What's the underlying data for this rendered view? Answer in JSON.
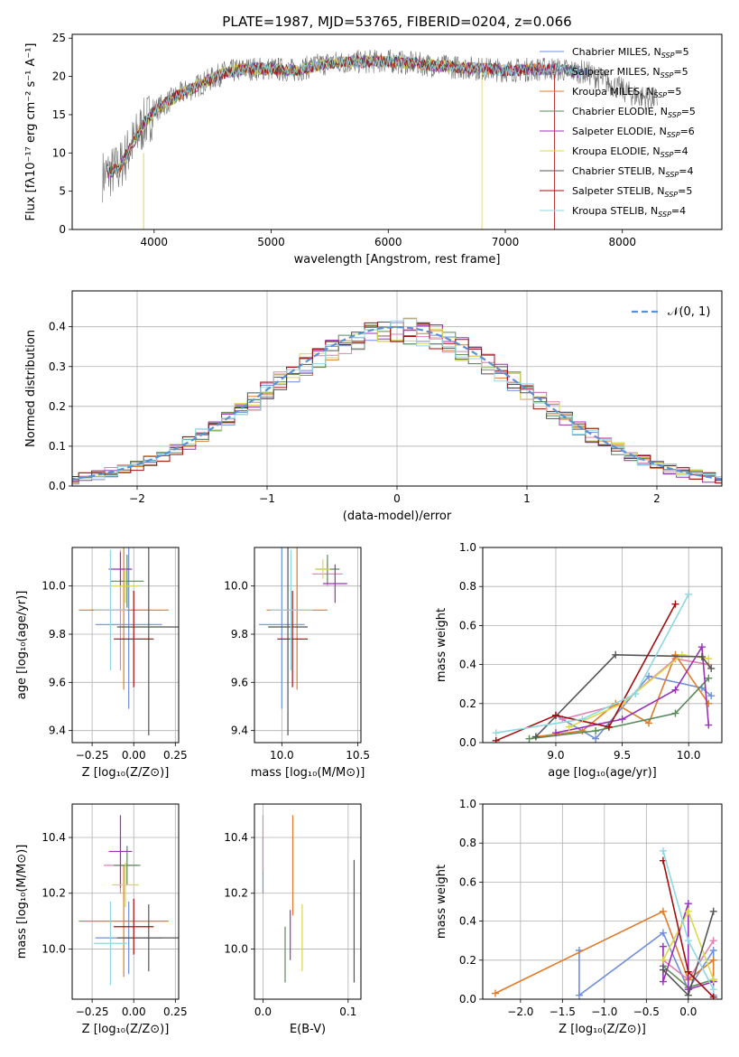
{
  "title": "PLATE=1987, MJD=53765, FIBERID=0204, z=0.066",
  "models": [
    {
      "name": "Chabrier MILES",
      "n": "5",
      "color": "#6f8fdc"
    },
    {
      "name": "Salpeter MILES",
      "n": "5",
      "color": "#a2a2a2"
    },
    {
      "name": "Kroupa MILES",
      "n": "5",
      "color": "#e07b2a"
    },
    {
      "name": "Chabrier ELODIE",
      "n": "5",
      "color": "#5a8a5a"
    },
    {
      "name": "Salpeter ELODIE",
      "n": "6",
      "color": "#9b30b8"
    },
    {
      "name": "Kroupa ELODIE",
      "n": "4",
      "color": "#d9d94a"
    },
    {
      "name": "Chabrier STELIB",
      "n": "4",
      "color": "#555555"
    },
    {
      "name": "Salpeter STELIB",
      "n": "5",
      "color": "#a30e0e"
    },
    {
      "name": "Kroupa STELIB",
      "n": "4",
      "color": "#8ed8e0"
    }
  ],
  "chart_data": [
    {
      "id": "spectrum",
      "type": "line",
      "title": "PLATE=1987, MJD=53765, FIBERID=0204, z=0.066",
      "xlabel": "wavelength [Angstrom, rest frame]",
      "ylabel": "Flux [fλ10⁻¹⁷ erg cm⁻² s⁻¹ A⁻¹]",
      "xlim": [
        3300,
        8850
      ],
      "ylim": [
        0,
        25.5
      ],
      "xticks": [
        "4000",
        "5000",
        "6000",
        "7000",
        "8000"
      ],
      "yticks": [
        "0",
        "5",
        "10",
        "15",
        "20",
        "25"
      ],
      "continuum": [
        [
          3560,
          7.0
        ],
        [
          3700,
          8.0
        ],
        [
          3900,
          13.5
        ],
        [
          4000,
          15.5
        ],
        [
          4200,
          17.5
        ],
        [
          4400,
          19.0
        ],
        [
          4600,
          20.5
        ],
        [
          4800,
          21.0
        ],
        [
          5000,
          21.0
        ],
        [
          5200,
          20.8
        ],
        [
          5500,
          21.8
        ],
        [
          6000,
          22.0
        ],
        [
          6500,
          21.3
        ],
        [
          7000,
          20.8
        ],
        [
          7400,
          21.0
        ],
        [
          7700,
          20.5
        ],
        [
          7900,
          19.0
        ],
        [
          8100,
          17.5
        ],
        [
          8300,
          17.0
        ]
      ],
      "legend_position": "upper right"
    },
    {
      "id": "residuals",
      "type": "histogram",
      "xlabel": "(data-model)/error",
      "ylabel": "Normed distribution",
      "xlim": [
        -2.5,
        2.5
      ],
      "ylim": [
        0,
        0.49
      ],
      "xticks": [
        "−2",
        "−1",
        "0",
        "1",
        "2"
      ],
      "yticks": [
        "0.0",
        "0.1",
        "0.2",
        "0.3",
        "0.4"
      ],
      "reference": {
        "label": "𝒩(0, 1)",
        "mean": 0,
        "sigma": 1
      },
      "grid": true,
      "legend_position": "upper right"
    },
    {
      "id": "age-vs-Z",
      "type": "errorbar",
      "xlabel": "Z [log₁₀(Z/Z⊙)]",
      "ylabel": "age  [log₁₀(age/yr)]",
      "xlim": [
        -0.37,
        0.27
      ],
      "ylim": [
        9.35,
        10.16
      ],
      "xticks": [
        "−0.25",
        "0.00",
        "0.25"
      ],
      "yticks": [
        "9.4",
        "9.6",
        "9.8",
        "10.0"
      ],
      "points": [
        {
          "x": -0.03,
          "xerr": 0.2,
          "y": 9.84,
          "yerr": 0.35
        },
        {
          "x": -0.08,
          "xerr": 0.18,
          "y": 9.9,
          "yerr": 0.25
        },
        {
          "x": -0.06,
          "xerr": 0.27,
          "y": 9.9,
          "yerr": 0.33
        },
        {
          "x": -0.04,
          "xerr": 0.1,
          "y": 10.02,
          "yerr": 0.11
        },
        {
          "x": -0.08,
          "xerr": 0.07,
          "y": 10.07,
          "yerr": 0.07
        },
        {
          "x": -0.05,
          "xerr": 0.08,
          "y": 10.0,
          "yerr": 0.07
        },
        {
          "x": 0.09,
          "xerr": 0.19,
          "y": 9.83,
          "yerr": 0.45
        },
        {
          "x": 0.0,
          "xerr": 0.12,
          "y": 9.78,
          "yerr": 0.2
        },
        {
          "x": -0.14,
          "xerr": 0.1,
          "y": 9.9,
          "yerr": 0.25
        }
      ]
    },
    {
      "id": "age-vs-mass",
      "type": "errorbar",
      "xlabel": "mass [log₁₀(M/M⊙)]",
      "ylabel": "",
      "xlim": [
        9.82,
        10.52
      ],
      "ylim": [
        9.35,
        10.16
      ],
      "xticks": [
        "10.0",
        "10.5"
      ],
      "yticks": [
        "9.4",
        "9.6",
        "9.8",
        "10.0"
      ],
      "points": [
        {
          "x": 10.0,
          "xerr": 0.15,
          "y": 9.84,
          "yerr": 0.35
        },
        {
          "x": 10.3,
          "xerr": 0.1,
          "y": 10.05,
          "yerr": 0.05
        },
        {
          "x": 10.1,
          "xerr": 0.2,
          "y": 9.9,
          "yerr": 0.33
        },
        {
          "x": 10.3,
          "xerr": 0.08,
          "y": 10.07,
          "yerr": 0.06
        },
        {
          "x": 10.35,
          "xerr": 0.08,
          "y": 10.01,
          "yerr": 0.08
        },
        {
          "x": 10.27,
          "xerr": 0.05,
          "y": 10.07,
          "yerr": 0.04
        },
        {
          "x": 10.04,
          "xerr": 0.13,
          "y": 9.83,
          "yerr": 0.45
        },
        {
          "x": 10.07,
          "xerr": 0.1,
          "y": 9.78,
          "yerr": 0.2
        },
        {
          "x": 10.06,
          "xerr": 0.14,
          "y": 9.9,
          "yerr": 0.25
        }
      ]
    },
    {
      "id": "weight-vs-age",
      "type": "line",
      "xlabel": "age  [log₁₀(age/yr)]",
      "ylabel": "mass weight",
      "xlim": [
        8.45,
        10.25
      ],
      "ylim": [
        0,
        1.0
      ],
      "xticks": [
        "9.0",
        "9.5",
        "10.0"
      ],
      "yticks": [
        "0.0",
        "0.2",
        "0.4",
        "0.6",
        "0.8",
        "1.0"
      ],
      "grid": true,
      "series": [
        {
          "x": [
            9.0,
            9.3,
            9.7,
            10.1,
            10.17
          ],
          "y": [
            0.14,
            0.02,
            0.34,
            0.28,
            0.24
          ]
        },
        {
          "x": [
            9.05,
            9.5,
            9.9,
            10.15
          ],
          "y": [
            0.12,
            0.2,
            0.43,
            0.4
          ]
        },
        {
          "x": [
            8.85,
            9.2,
            9.45,
            9.7,
            9.9,
            10.15
          ],
          "y": [
            0.03,
            0.06,
            0.2,
            0.1,
            0.45,
            0.2
          ]
        },
        {
          "x": [
            8.8,
            9.3,
            9.9,
            10.15
          ],
          "y": [
            0.02,
            0.06,
            0.15,
            0.33
          ]
        },
        {
          "x": [
            9.0,
            9.5,
            9.9,
            10.1,
            10.15
          ],
          "y": [
            0.05,
            0.12,
            0.27,
            0.49,
            0.09
          ]
        },
        {
          "x": [
            9.1,
            9.5,
            9.95,
            10.15
          ],
          "y": [
            0.08,
            0.2,
            0.45,
            0.43
          ]
        },
        {
          "x": [
            8.85,
            9.45,
            10.1,
            10.17
          ],
          "y": [
            0.03,
            0.45,
            0.44,
            0.38
          ]
        },
        {
          "x": [
            8.55,
            9.0,
            9.4,
            9.9
          ],
          "y": [
            0.01,
            0.14,
            0.08,
            0.71
          ]
        },
        {
          "x": [
            8.55,
            9.2,
            9.6,
            10.0
          ],
          "y": [
            0.05,
            0.12,
            0.25,
            0.76
          ]
        }
      ]
    },
    {
      "id": "mass-vs-Z",
      "type": "errorbar",
      "xlabel": "Z [log₁₀(Z/Z⊙)]",
      "ylabel": "mass [log₁₀(M/M⊙)]",
      "xlim": [
        -0.37,
        0.27
      ],
      "ylim": [
        9.82,
        10.52
      ],
      "xticks": [
        "−0.25",
        "0.00",
        "0.25"
      ],
      "yticks": [
        "10.0",
        "10.2",
        "10.4"
      ],
      "points": [
        {
          "x": -0.03,
          "xerr": 0.2,
          "y": 10.04,
          "yerr": 0.13
        },
        {
          "x": -0.08,
          "xerr": 0.1,
          "y": 10.3,
          "yerr": 0.1
        },
        {
          "x": -0.06,
          "xerr": 0.27,
          "y": 10.1,
          "yerr": 0.2
        },
        {
          "x": -0.04,
          "xerr": 0.08,
          "y": 10.3,
          "yerr": 0.07
        },
        {
          "x": -0.08,
          "xerr": 0.07,
          "y": 10.35,
          "yerr": 0.13
        },
        {
          "x": -0.05,
          "xerr": 0.08,
          "y": 10.23,
          "yerr": 0.08
        },
        {
          "x": 0.09,
          "xerr": 0.19,
          "y": 10.04,
          "yerr": 0.12
        },
        {
          "x": 0.0,
          "xerr": 0.12,
          "y": 10.08,
          "yerr": 0.1
        },
        {
          "x": -0.14,
          "xerr": 0.1,
          "y": 10.02,
          "yerr": 0.15
        }
      ]
    },
    {
      "id": "mass-vs-EBV",
      "type": "errorbar",
      "xlabel": "E(B-V)",
      "ylabel": "",
      "xlim": [
        -0.01,
        0.115
      ],
      "ylim": [
        9.82,
        10.52
      ],
      "xticks": [
        "0.0",
        "0.1"
      ],
      "yticks": [
        "10.0",
        "10.2",
        "10.4"
      ],
      "points": [
        {
          "x": 0.0,
          "xerr": 0.0,
          "y": 10.3,
          "yerr": 0.1
        },
        {
          "x": 0.0,
          "xerr": 0.0,
          "y": 10.38,
          "yerr": 0.1
        },
        {
          "x": 0.035,
          "xerr": 0.0,
          "y": 10.3,
          "yerr": 0.18
        },
        {
          "x": 0.026,
          "xerr": 0.0,
          "y": 9.98,
          "yerr": 0.1
        },
        {
          "x": 0.032,
          "xerr": 0.0,
          "y": 10.05,
          "yerr": 0.09
        },
        {
          "x": 0.046,
          "xerr": 0.0,
          "y": 10.04,
          "yerr": 0.12
        },
        {
          "x": 0.107,
          "xerr": 0.0,
          "y": 10.1,
          "yerr": 0.22
        }
      ]
    },
    {
      "id": "weight-vs-Z",
      "type": "line",
      "xlabel": "Z [log₁₀(Z/Z⊙)]",
      "ylabel": "mass weight",
      "xlim": [
        -2.45,
        0.4
      ],
      "ylim": [
        0,
        1.0
      ],
      "xticks": [
        "−2.0",
        "−1.5",
        "−1.0",
        "−0.5",
        "0.0"
      ],
      "yticks": [
        "0.0",
        "0.2",
        "0.4",
        "0.6",
        "0.8",
        "1.0"
      ],
      "grid": true,
      "series": [
        {
          "x": [
            -1.3,
            -1.3,
            -0.3,
            0.0,
            0.3,
            0.3
          ],
          "y": [
            0.25,
            0.02,
            0.34,
            0.05,
            0.25,
            0.02
          ]
        },
        {
          "x": [
            -0.3,
            0.0,
            0.3
          ],
          "y": [
            0.2,
            0.1,
            0.3
          ]
        },
        {
          "x": [
            -2.3,
            -0.3,
            0.0,
            0.3,
            0.3
          ],
          "y": [
            0.03,
            0.45,
            0.1,
            0.2,
            0.1
          ]
        },
        {
          "x": [
            -0.3,
            0.0,
            0.3
          ],
          "y": [
            0.17,
            0.06,
            0.1
          ]
        },
        {
          "x": [
            -0.3,
            -0.3,
            0.0,
            0.0,
            0.3
          ],
          "y": [
            0.27,
            0.09,
            0.49,
            0.05,
            0.09
          ]
        },
        {
          "x": [
            -0.3,
            0.0,
            0.3
          ],
          "y": [
            0.2,
            0.45,
            0.1
          ]
        },
        {
          "x": [
            -0.3,
            0.0,
            0.3
          ],
          "y": [
            0.15,
            0.02,
            0.45
          ]
        },
        {
          "x": [
            -0.3,
            0.0,
            0.3
          ],
          "y": [
            0.71,
            0.14,
            0.01
          ]
        },
        {
          "x": [
            -0.3,
            0.0,
            0.3
          ],
          "y": [
            0.76,
            0.3,
            0.05
          ]
        }
      ]
    }
  ]
}
